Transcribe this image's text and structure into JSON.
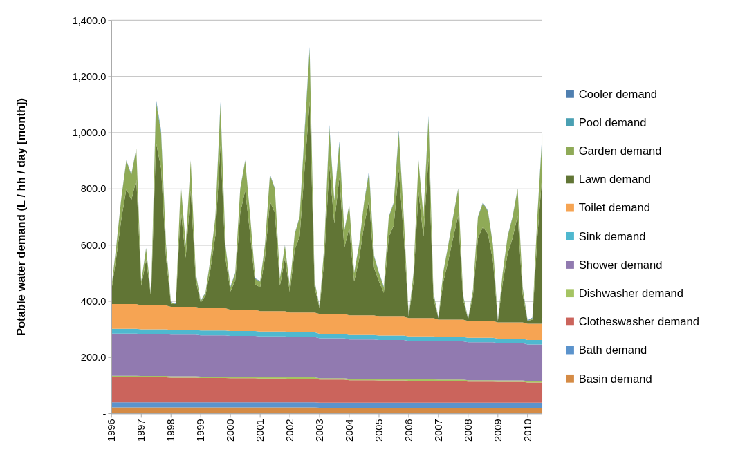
{
  "chart_data": {
    "type": "area",
    "stacked": true,
    "ylabel": "Potable water demand (L / hh / day [month])",
    "x": [
      "1996-01",
      "1996-03",
      "1996-05",
      "1996-07",
      "1996-09",
      "1996-11",
      "1997-01",
      "1997-03",
      "1997-05",
      "1997-07",
      "1997-09",
      "1997-11",
      "1998-01",
      "1998-03",
      "1998-05",
      "1998-07",
      "1998-09",
      "1998-11",
      "1999-01",
      "1999-03",
      "1999-05",
      "1999-07",
      "1999-09",
      "1999-11",
      "2000-01",
      "2000-03",
      "2000-05",
      "2000-07",
      "2000-09",
      "2000-11",
      "2001-01",
      "2001-03",
      "2001-05",
      "2001-07",
      "2001-09",
      "2001-11",
      "2002-01",
      "2002-03",
      "2002-05",
      "2002-07",
      "2002-09",
      "2002-11",
      "2003-01",
      "2003-03",
      "2003-05",
      "2003-07",
      "2003-09",
      "2003-11",
      "2004-01",
      "2004-03",
      "2004-05",
      "2004-07",
      "2004-09",
      "2004-11",
      "2005-01",
      "2005-03",
      "2005-05",
      "2005-07",
      "2005-09",
      "2005-11",
      "2006-01",
      "2006-03",
      "2006-05",
      "2006-07",
      "2006-09",
      "2006-11",
      "2007-01",
      "2007-03",
      "2007-05",
      "2007-07",
      "2007-09",
      "2007-11",
      "2008-01",
      "2008-03",
      "2008-05",
      "2008-07",
      "2008-09",
      "2008-11",
      "2009-01",
      "2009-03",
      "2009-05",
      "2009-07",
      "2009-09",
      "2009-11",
      "2010-01",
      "2010-03",
      "2010-05",
      "2010-07"
    ],
    "xlim": [
      "1996-01",
      "2010-07"
    ],
    "xticks": [
      "1996",
      "1997",
      "1998",
      "1999",
      "2000",
      "2001",
      "2002",
      "2003",
      "2004",
      "2005",
      "2006",
      "2007",
      "2008",
      "2009",
      "2010"
    ],
    "ylim": [
      0,
      1400
    ],
    "yticks": [
      {
        "value": 0,
        "label": "-"
      },
      {
        "value": 200,
        "label": "200.0"
      },
      {
        "value": 400,
        "label": "400.0"
      },
      {
        "value": 600,
        "label": "600.0"
      },
      {
        "value": 800,
        "label": "800.0"
      },
      {
        "value": 1000,
        "label": "1,000.0"
      },
      {
        "value": 1200,
        "label": "1,200.0"
      },
      {
        "value": 1400,
        "label": "1,400.0"
      }
    ],
    "grid": "y",
    "legend": "right",
    "series": [
      {
        "name": "Basin demand",
        "color": "#d58b45",
        "values": [
          22,
          22,
          22,
          22,
          22,
          22,
          22,
          22,
          22,
          22,
          22,
          22,
          22,
          22,
          22,
          22,
          22,
          22,
          22,
          22,
          22,
          22,
          22,
          22,
          22,
          22,
          22,
          22,
          22,
          22,
          22,
          22,
          22,
          22,
          22,
          22,
          22,
          22,
          22,
          22,
          22,
          22,
          21,
          21,
          21,
          21,
          21,
          21,
          21,
          21,
          21,
          21,
          21,
          21,
          21,
          21,
          21,
          21,
          21,
          21,
          21,
          21,
          21,
          21,
          21,
          21,
          21,
          21,
          21,
          21,
          21,
          21,
          21,
          21,
          21,
          21,
          21,
          21,
          21,
          21,
          21,
          21,
          21,
          21,
          21,
          21,
          21,
          21
        ]
      },
      {
        "name": "Bath demand",
        "color": "#5b93cc",
        "values": [
          18,
          18,
          18,
          18,
          18,
          18,
          18,
          18,
          18,
          18,
          18,
          18,
          18,
          18,
          18,
          18,
          18,
          18,
          18,
          18,
          18,
          18,
          18,
          18,
          18,
          18,
          18,
          18,
          18,
          18,
          18,
          18,
          18,
          18,
          18,
          18,
          18,
          18,
          18,
          18,
          18,
          18,
          18,
          18,
          18,
          18,
          18,
          18,
          18,
          18,
          18,
          18,
          18,
          18,
          18,
          18,
          18,
          18,
          18,
          18,
          18,
          18,
          18,
          18,
          18,
          18,
          18,
          18,
          18,
          18,
          18,
          18,
          18,
          18,
          18,
          18,
          18,
          18,
          18,
          18,
          18,
          18,
          18,
          18,
          18,
          18,
          18,
          18
        ]
      },
      {
        "name": "Clotheswasher demand",
        "color": "#cb645c",
        "values": [
          90,
          90,
          90,
          90,
          90,
          90,
          89,
          89,
          89,
          89,
          89,
          89,
          88,
          88,
          88,
          88,
          88,
          88,
          87,
          87,
          87,
          87,
          87,
          87,
          86,
          86,
          86,
          86,
          86,
          86,
          85,
          85,
          85,
          85,
          85,
          85,
          84,
          84,
          84,
          84,
          84,
          84,
          82,
          82,
          82,
          82,
          82,
          82,
          80,
          80,
          80,
          80,
          80,
          80,
          79,
          79,
          79,
          79,
          79,
          79,
          78,
          78,
          78,
          78,
          78,
          78,
          77,
          77,
          77,
          77,
          77,
          77,
          75,
          75,
          75,
          75,
          75,
          75,
          74,
          74,
          74,
          74,
          74,
          74,
          72,
          72,
          72,
          72
        ]
      },
      {
        "name": "Dishwasher demand",
        "color": "#a5c463",
        "values": [
          5,
          5,
          5,
          5,
          5,
          5,
          5,
          5,
          5,
          5,
          5,
          5,
          5,
          5,
          5,
          5,
          5,
          5,
          5,
          5,
          5,
          5,
          5,
          5,
          5,
          5,
          5,
          5,
          5,
          5,
          5,
          5,
          5,
          5,
          5,
          5,
          5,
          5,
          5,
          5,
          5,
          5,
          5,
          5,
          5,
          5,
          5,
          5,
          5,
          5,
          5,
          5,
          5,
          5,
          5,
          5,
          5,
          5,
          5,
          5,
          5,
          5,
          5,
          5,
          5,
          5,
          5,
          5,
          5,
          5,
          5,
          5,
          5,
          5,
          5,
          5,
          5,
          5,
          5,
          5,
          5,
          5,
          5,
          5,
          5,
          5,
          5,
          5
        ]
      },
      {
        "name": "Shower demand",
        "color": "#917ab0",
        "values": [
          150,
          150,
          150,
          150,
          150,
          150,
          149,
          149,
          149,
          149,
          149,
          149,
          148,
          148,
          148,
          148,
          148,
          148,
          147,
          147,
          147,
          147,
          147,
          147,
          146,
          146,
          146,
          146,
          146,
          146,
          145,
          145,
          145,
          145,
          145,
          145,
          144,
          144,
          144,
          144,
          144,
          144,
          142,
          142,
          142,
          142,
          142,
          142,
          140,
          140,
          140,
          140,
          140,
          140,
          139,
          139,
          139,
          139,
          139,
          139,
          137,
          137,
          137,
          137,
          137,
          137,
          136,
          136,
          136,
          136,
          136,
          136,
          135,
          135,
          135,
          135,
          135,
          135,
          133,
          133,
          133,
          133,
          133,
          133,
          130,
          130,
          130,
          130
        ]
      },
      {
        "name": "Sink demand",
        "color": "#4fb8cf",
        "values": [
          17,
          17,
          17,
          17,
          17,
          17,
          17,
          17,
          17,
          17,
          17,
          17,
          17,
          17,
          17,
          17,
          17,
          17,
          17,
          17,
          17,
          17,
          17,
          17,
          17,
          17,
          17,
          17,
          17,
          17,
          17,
          17,
          17,
          17,
          17,
          17,
          17,
          17,
          17,
          17,
          17,
          17,
          16,
          16,
          16,
          16,
          16,
          16,
          16,
          16,
          16,
          16,
          16,
          16,
          16,
          16,
          16,
          16,
          16,
          16,
          16,
          16,
          16,
          16,
          16,
          16,
          16,
          16,
          16,
          16,
          16,
          16,
          16,
          16,
          16,
          16,
          16,
          16,
          16,
          16,
          16,
          16,
          16,
          16,
          16,
          16,
          16,
          16
        ]
      },
      {
        "name": "Toilet demand",
        "color": "#f6a453",
        "values": [
          88,
          88,
          88,
          88,
          88,
          88,
          85,
          85,
          85,
          85,
          85,
          85,
          82,
          82,
          82,
          82,
          82,
          82,
          79,
          79,
          79,
          79,
          79,
          79,
          76,
          76,
          76,
          76,
          76,
          76,
          73,
          73,
          73,
          73,
          73,
          73,
          70,
          70,
          70,
          70,
          70,
          70,
          71,
          71,
          71,
          71,
          71,
          71,
          70,
          70,
          70,
          70,
          70,
          70,
          67,
          67,
          67,
          67,
          67,
          67,
          65,
          65,
          65,
          65,
          65,
          65,
          62,
          62,
          62,
          62,
          62,
          62,
          60,
          60,
          60,
          60,
          60,
          60,
          58,
          58,
          58,
          58,
          58,
          58,
          58,
          58,
          58,
          58
        ]
      },
      {
        "name": "Lawn demand",
        "color": "#617535",
        "values": [
          51,
          170,
          303,
          410,
          370,
          443,
          70,
          163,
          30,
          581,
          490,
          170,
          10,
          10,
          348,
          175,
          415,
          95,
          20,
          45,
          140,
          260,
          580,
          180,
          65,
          105,
          345,
          425,
          265,
          90,
          85,
          190,
          390,
          350,
          90,
          188,
          71,
          223,
          270,
          510,
          751,
          90,
          20,
          195,
          528,
          323,
          485,
          235,
          312,
          120,
          200,
          320,
          410,
          170,
          125,
          85,
          285,
          325,
          525,
          285,
          5,
          130,
          450,
          290,
          571,
          70,
          5,
          132,
          208,
          290,
          370,
          70,
          6,
          90,
          295,
          335,
          310,
          215,
          5,
          140,
          246,
          300,
          380,
          100,
          10,
          15,
          305,
          536
        ]
      },
      {
        "name": "Garden demand",
        "color": "#8faa57",
        "values": [
          10,
          40,
          75,
          100,
          90,
          110,
          15,
          40,
          5,
          145,
          125,
          45,
          5,
          0,
          90,
          45,
          105,
          25,
          5,
          10,
          35,
          65,
          145,
          45,
          15,
          25,
          85,
          105,
          65,
          20,
          20,
          45,
          95,
          85,
          25,
          45,
          20,
          55,
          70,
          130,
          185,
          20,
          5,
          50,
          135,
          80,
          120,
          60,
          80,
          30,
          50,
          80,
          100,
          40,
          30,
          20,
          70,
          80,
          130,
          70,
          0,
          30,
          110,
          70,
          140,
          20,
          0,
          35,
          55,
          75,
          95,
          15,
          0,
          20,
          75,
          85,
          80,
          55,
          0,
          35,
          60,
          75,
          95,
          25,
          0,
          5,
          75,
          135
        ]
      },
      {
        "name": "Pool demand",
        "color": "#4aa0b3",
        "values": [
          0,
          0,
          0,
          0,
          0,
          0,
          0,
          0,
          0,
          5,
          5,
          0,
          0,
          0,
          0,
          0,
          0,
          0,
          0,
          0,
          0,
          0,
          5,
          0,
          0,
          0,
          0,
          0,
          0,
          0,
          0,
          0,
          0,
          0,
          0,
          0,
          0,
          0,
          0,
          5,
          5,
          0,
          0,
          0,
          5,
          0,
          5,
          0,
          0,
          0,
          0,
          0,
          3,
          0,
          0,
          0,
          0,
          0,
          5,
          0,
          0,
          0,
          0,
          0,
          5,
          0,
          0,
          0,
          0,
          0,
          0,
          0,
          0,
          0,
          0,
          0,
          0,
          0,
          0,
          0,
          0,
          0,
          0,
          0,
          0,
          0,
          0,
          5
        ]
      },
      {
        "name": "Cooler demand",
        "color": "#4f7fb0",
        "values": [
          2,
          2,
          2,
          2,
          2,
          2,
          2,
          2,
          2,
          4,
          4,
          2,
          2,
          2,
          2,
          2,
          2,
          2,
          2,
          2,
          2,
          2,
          4,
          2,
          2,
          2,
          2,
          2,
          2,
          2,
          2,
          2,
          2,
          2,
          2,
          2,
          2,
          2,
          2,
          4,
          4,
          2,
          2,
          2,
          4,
          2,
          4,
          2,
          2,
          2,
          2,
          2,
          4,
          2,
          2,
          2,
          2,
          2,
          4,
          2,
          2,
          2,
          2,
          2,
          4,
          2,
          2,
          2,
          2,
          2,
          2,
          2,
          2,
          2,
          2,
          2,
          2,
          2,
          2,
          2,
          2,
          2,
          2,
          2,
          2,
          2,
          2,
          4
        ]
      }
    ]
  }
}
